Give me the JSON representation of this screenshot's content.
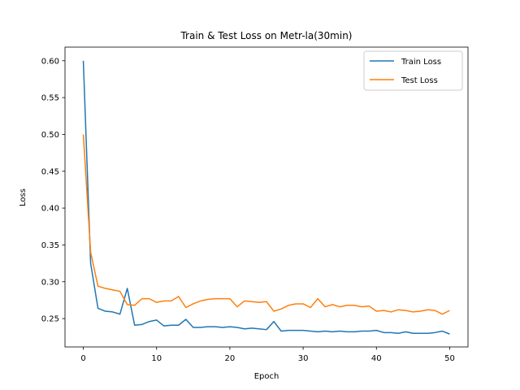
{
  "chart_data": {
    "type": "line",
    "title": "Train & Test Loss on Metr-la(30min)",
    "xlabel": "Epoch",
    "ylabel": "Loss",
    "xlim": [
      -2.5,
      52.5
    ],
    "ylim": [
      0.2115,
      0.6185
    ],
    "xticks": [
      0,
      10,
      20,
      30,
      40,
      50
    ],
    "xtick_labels": [
      "0",
      "10",
      "20",
      "30",
      "40",
      "50"
    ],
    "yticks": [
      0.25,
      0.3,
      0.35,
      0.4,
      0.45,
      0.5,
      0.55,
      0.6
    ],
    "ytick_labels": [
      "0.25",
      "0.30",
      "0.35",
      "0.40",
      "0.45",
      "0.50",
      "0.55",
      "0.60"
    ],
    "grid": false,
    "legend_position": "top-right",
    "x": [
      0,
      1,
      2,
      3,
      4,
      5,
      6,
      7,
      8,
      9,
      10,
      11,
      12,
      13,
      14,
      15,
      16,
      17,
      18,
      19,
      20,
      21,
      22,
      23,
      24,
      25,
      26,
      27,
      28,
      29,
      30,
      31,
      32,
      33,
      34,
      35,
      36,
      37,
      38,
      39,
      40,
      41,
      42,
      43,
      44,
      45,
      46,
      47,
      48,
      49,
      50
    ],
    "series": [
      {
        "name": "Train Loss",
        "color": "#1f77b4",
        "values": [
          0.6,
          0.325,
          0.264,
          0.26,
          0.259,
          0.256,
          0.291,
          0.241,
          0.242,
          0.246,
          0.248,
          0.24,
          0.241,
          0.241,
          0.249,
          0.238,
          0.238,
          0.239,
          0.239,
          0.238,
          0.239,
          0.238,
          0.236,
          0.237,
          0.236,
          0.235,
          0.246,
          0.233,
          0.234,
          0.234,
          0.234,
          0.233,
          0.232,
          0.233,
          0.232,
          0.233,
          0.232,
          0.232,
          0.233,
          0.233,
          0.234,
          0.231,
          0.231,
          0.23,
          0.232,
          0.23,
          0.23,
          0.23,
          0.231,
          0.233,
          0.229
        ]
      },
      {
        "name": "Test Loss",
        "color": "#ff7f0e",
        "values": [
          0.5,
          0.34,
          0.294,
          0.291,
          0.289,
          0.287,
          0.269,
          0.268,
          0.277,
          0.277,
          0.272,
          0.274,
          0.274,
          0.28,
          0.265,
          0.27,
          0.274,
          0.276,
          0.277,
          0.277,
          0.277,
          0.266,
          0.274,
          0.273,
          0.272,
          0.273,
          0.26,
          0.263,
          0.268,
          0.27,
          0.27,
          0.265,
          0.277,
          0.266,
          0.269,
          0.266,
          0.268,
          0.268,
          0.266,
          0.267,
          0.26,
          0.261,
          0.259,
          0.262,
          0.261,
          0.259,
          0.26,
          0.262,
          0.261,
          0.256,
          0.261
        ]
      }
    ]
  }
}
